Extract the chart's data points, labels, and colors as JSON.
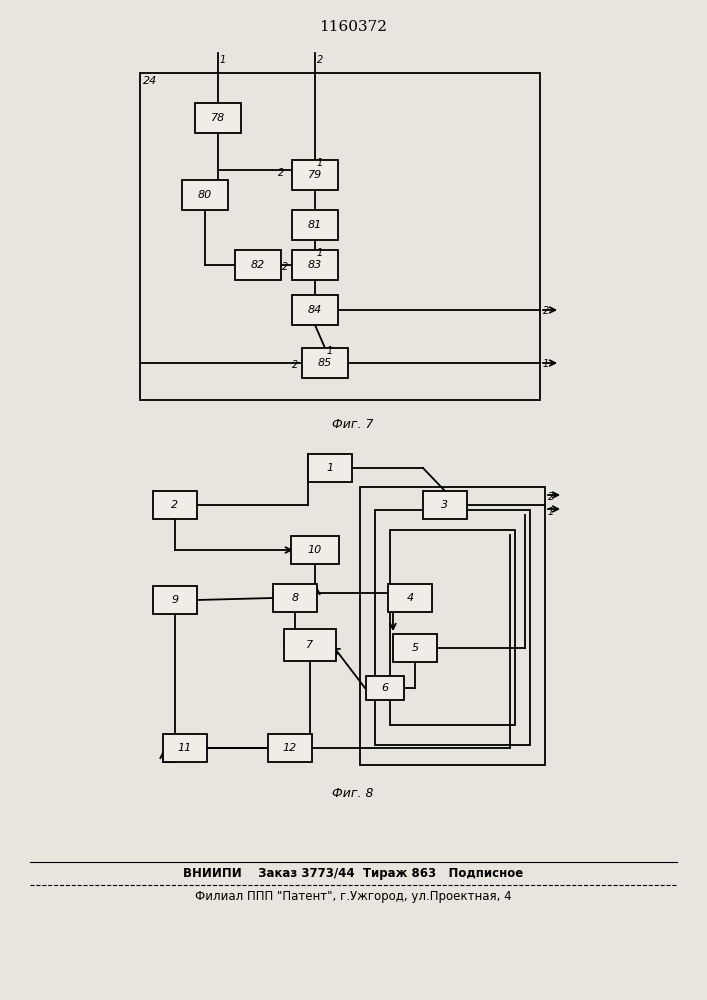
{
  "title": "1160372",
  "fig7_label": "Фиг. 7",
  "fig8_label": "Фиг. 8",
  "footer_line1": "ВНИИПИ    Заказ 3773/44  Тираж 863   Подписное",
  "footer_line2": "Филиал ППП \"Патент\", г.Ужгород, ул.Проектная, 4",
  "bg_color": "#e8e4de",
  "box_facecolor": "#f0ece6",
  "line_color": "#000000"
}
